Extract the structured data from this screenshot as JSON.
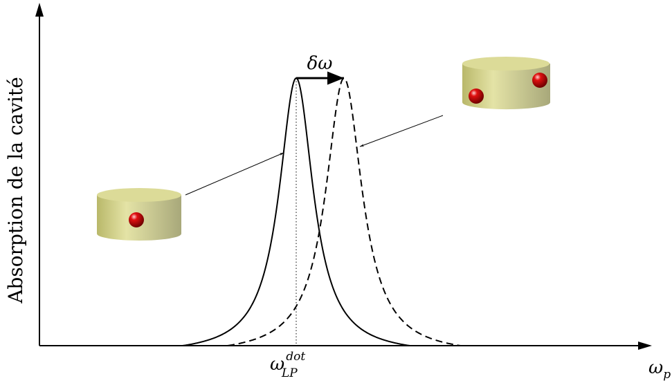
{
  "axes": {
    "y_label": "Absorption de la cavité",
    "x_label": {
      "symbol": "ω",
      "subscript": "p"
    }
  },
  "annotations": {
    "shift": "δω",
    "peak": {
      "symbol": "ω",
      "subscript": "LP",
      "superscript": "dot"
    }
  }
}
